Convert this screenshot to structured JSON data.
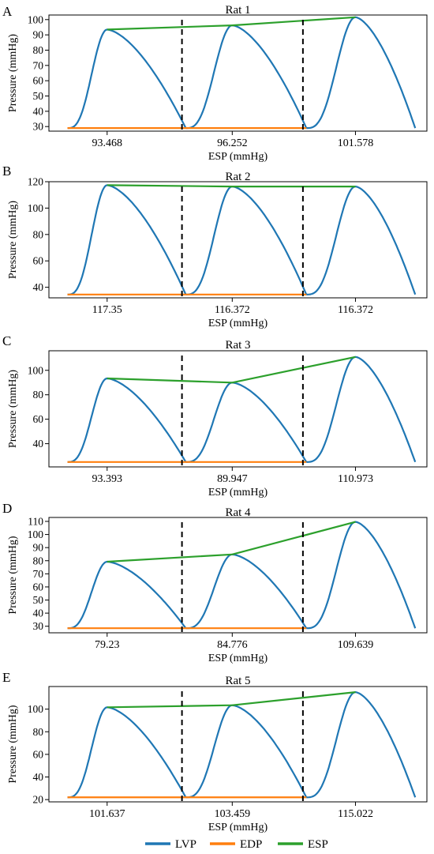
{
  "legend": [
    {
      "name": "LVP",
      "color": "#1f77b4"
    },
    {
      "name": "EDP",
      "color": "#ff7f0e"
    },
    {
      "name": "ESP",
      "color": "#2ca02c"
    }
  ],
  "chart_data": [
    {
      "type": "line",
      "panel": "A",
      "title": "Rat 1",
      "xlabel": "ESP (mmHg)",
      "ylabel": "Pressure (mmHg)",
      "ylim": [
        27,
        103
      ],
      "yticks": [
        30,
        40,
        50,
        60,
        70,
        80,
        90,
        100
      ],
      "xtick_labels": [
        "93.468",
        "96.252",
        "101.578"
      ],
      "grid": false,
      "legend_position": "bottom",
      "edp": 29,
      "esp": [
        93.468,
        96.252,
        101.578
      ]
    },
    {
      "type": "line",
      "panel": "B",
      "title": "Rat 2",
      "xlabel": "ESP (mmHg)",
      "ylabel": "Pressure (mmHg)",
      "ylim": [
        32,
        120
      ],
      "yticks": [
        40,
        60,
        80,
        100,
        120
      ],
      "xtick_labels": [
        "117.35",
        "116.372",
        "116.372"
      ],
      "grid": false,
      "legend_position": "bottom",
      "edp": 34.5,
      "esp": [
        117.35,
        116.372,
        116.372
      ]
    },
    {
      "type": "line",
      "panel": "C",
      "title": "Rat 3",
      "xlabel": "ESP (mmHg)",
      "ylabel": "Pressure (mmHg)",
      "ylim": [
        21,
        116
      ],
      "yticks": [
        40,
        60,
        80,
        100
      ],
      "xtick_labels": [
        "93.393",
        "89.947",
        "110.973"
      ],
      "grid": false,
      "legend_position": "bottom",
      "edp": 25,
      "esp": [
        93.393,
        89.947,
        110.973
      ]
    },
    {
      "type": "line",
      "panel": "D",
      "title": "Rat 4",
      "xlabel": "ESP (mmHg)",
      "ylabel": "Pressure (mmHg)",
      "ylim": [
        25,
        113
      ],
      "yticks": [
        30,
        40,
        50,
        60,
        70,
        80,
        90,
        100,
        110
      ],
      "xtick_labels": [
        "79.23",
        "84.776",
        "109.639"
      ],
      "grid": false,
      "legend_position": "bottom",
      "edp": 28.5,
      "esp": [
        79.23,
        84.776,
        109.639
      ]
    },
    {
      "type": "line",
      "panel": "E",
      "title": "Rat 5",
      "xlabel": "ESP (mmHg)",
      "ylabel": "Pressure (mmHg)",
      "ylim": [
        18,
        120
      ],
      "yticks": [
        20,
        40,
        60,
        80,
        100
      ],
      "xtick_labels": [
        "101.637",
        "103.459",
        "115.022"
      ],
      "grid": false,
      "legend_position": "bottom",
      "edp": 22,
      "esp": [
        101.637,
        103.459,
        115.022
      ]
    }
  ]
}
